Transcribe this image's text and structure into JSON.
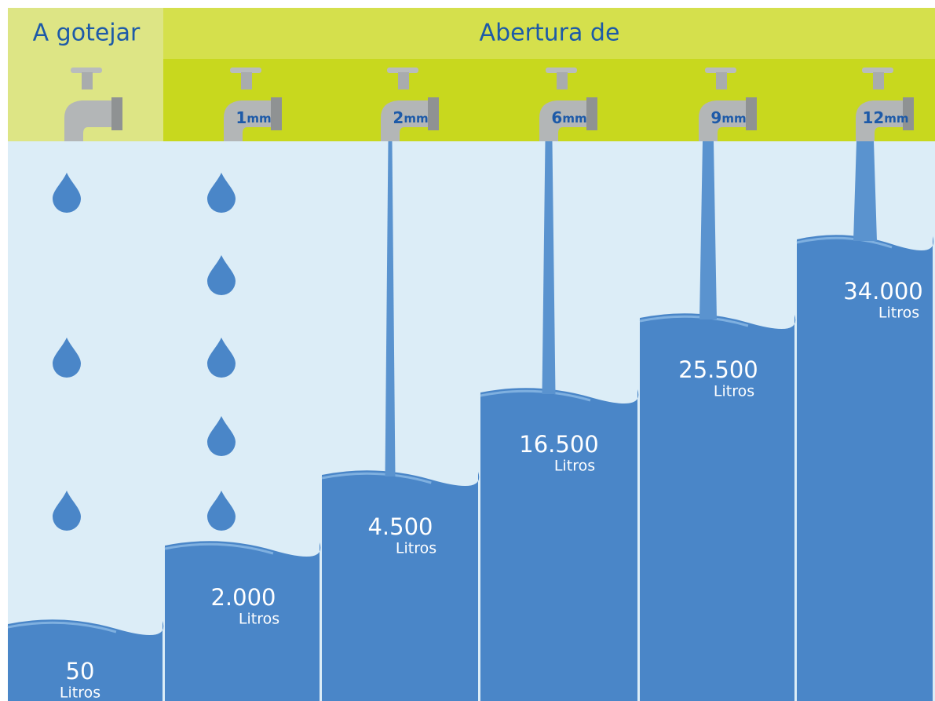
{
  "header": {
    "left_title": "A gotejar",
    "right_title": "Abertura de"
  },
  "columns": [
    {
      "amount": "50",
      "unit": "Litros"
    },
    {
      "size": "1",
      "size_unit": "mm",
      "amount": "2.000",
      "unit": "Litros"
    },
    {
      "size": "2",
      "size_unit": "mm",
      "amount": "4.500",
      "unit": "Litros"
    },
    {
      "size": "6",
      "size_unit": "mm",
      "amount": "16.500",
      "unit": "Litros"
    },
    {
      "size": "9",
      "size_unit": "mm",
      "amount": "25.500",
      "unit": "Litros"
    },
    {
      "size": "12",
      "size_unit": "mm",
      "amount": "34.000",
      "unit": "Litros"
    }
  ]
}
